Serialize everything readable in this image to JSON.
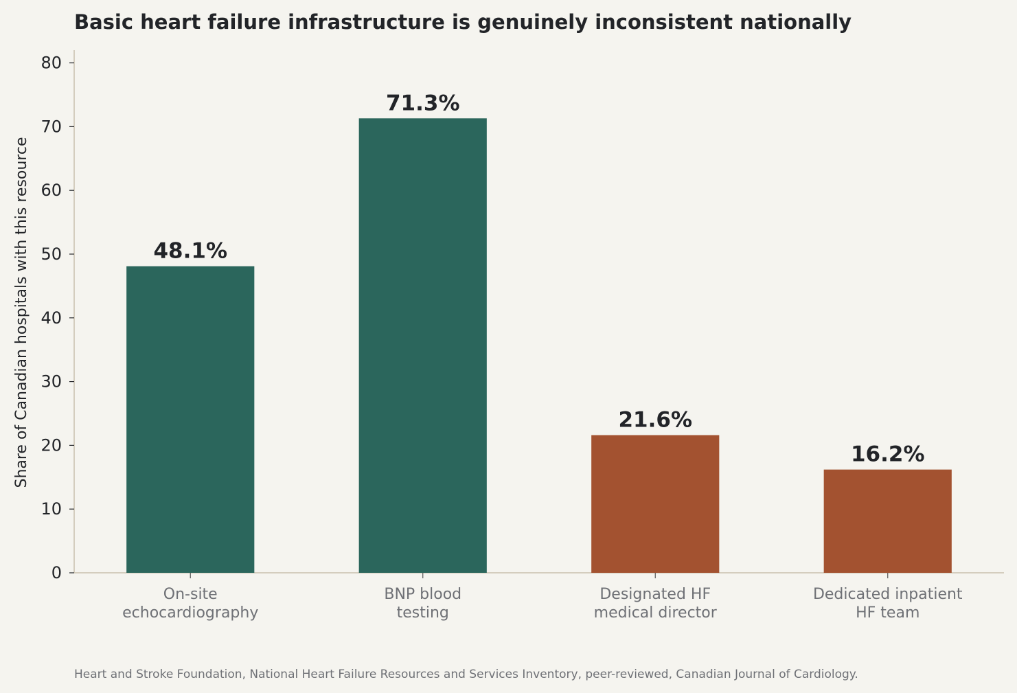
{
  "chart_data": {
    "type": "bar",
    "title": "Basic heart failure infrastructure is genuinely inconsistent nationally",
    "xlabel": "",
    "ylabel": "Share of Canadian hospitals with this resource",
    "categories": [
      [
        "On-site",
        "echocardiography"
      ],
      [
        "BNP blood",
        "testing"
      ],
      [
        "Designated HF",
        "medical director"
      ],
      [
        "Dedicated inpatient",
        "HF team"
      ]
    ],
    "values": [
      48.1,
      71.3,
      21.6,
      16.2
    ],
    "value_labels": [
      "48.1%",
      "71.3%",
      "21.6%",
      "16.2%"
    ],
    "bar_colors": [
      "#2b665c",
      "#2b665c",
      "#a35230",
      "#a35230"
    ],
    "ylim": [
      0,
      82
    ],
    "yticks": [
      0,
      10,
      20,
      30,
      40,
      50,
      60,
      70,
      80
    ],
    "grid": false,
    "source": "Heart and Stroke Foundation, National Heart Failure Resources and Services Inventory, peer-reviewed, Canadian Journal of Cardiology."
  }
}
